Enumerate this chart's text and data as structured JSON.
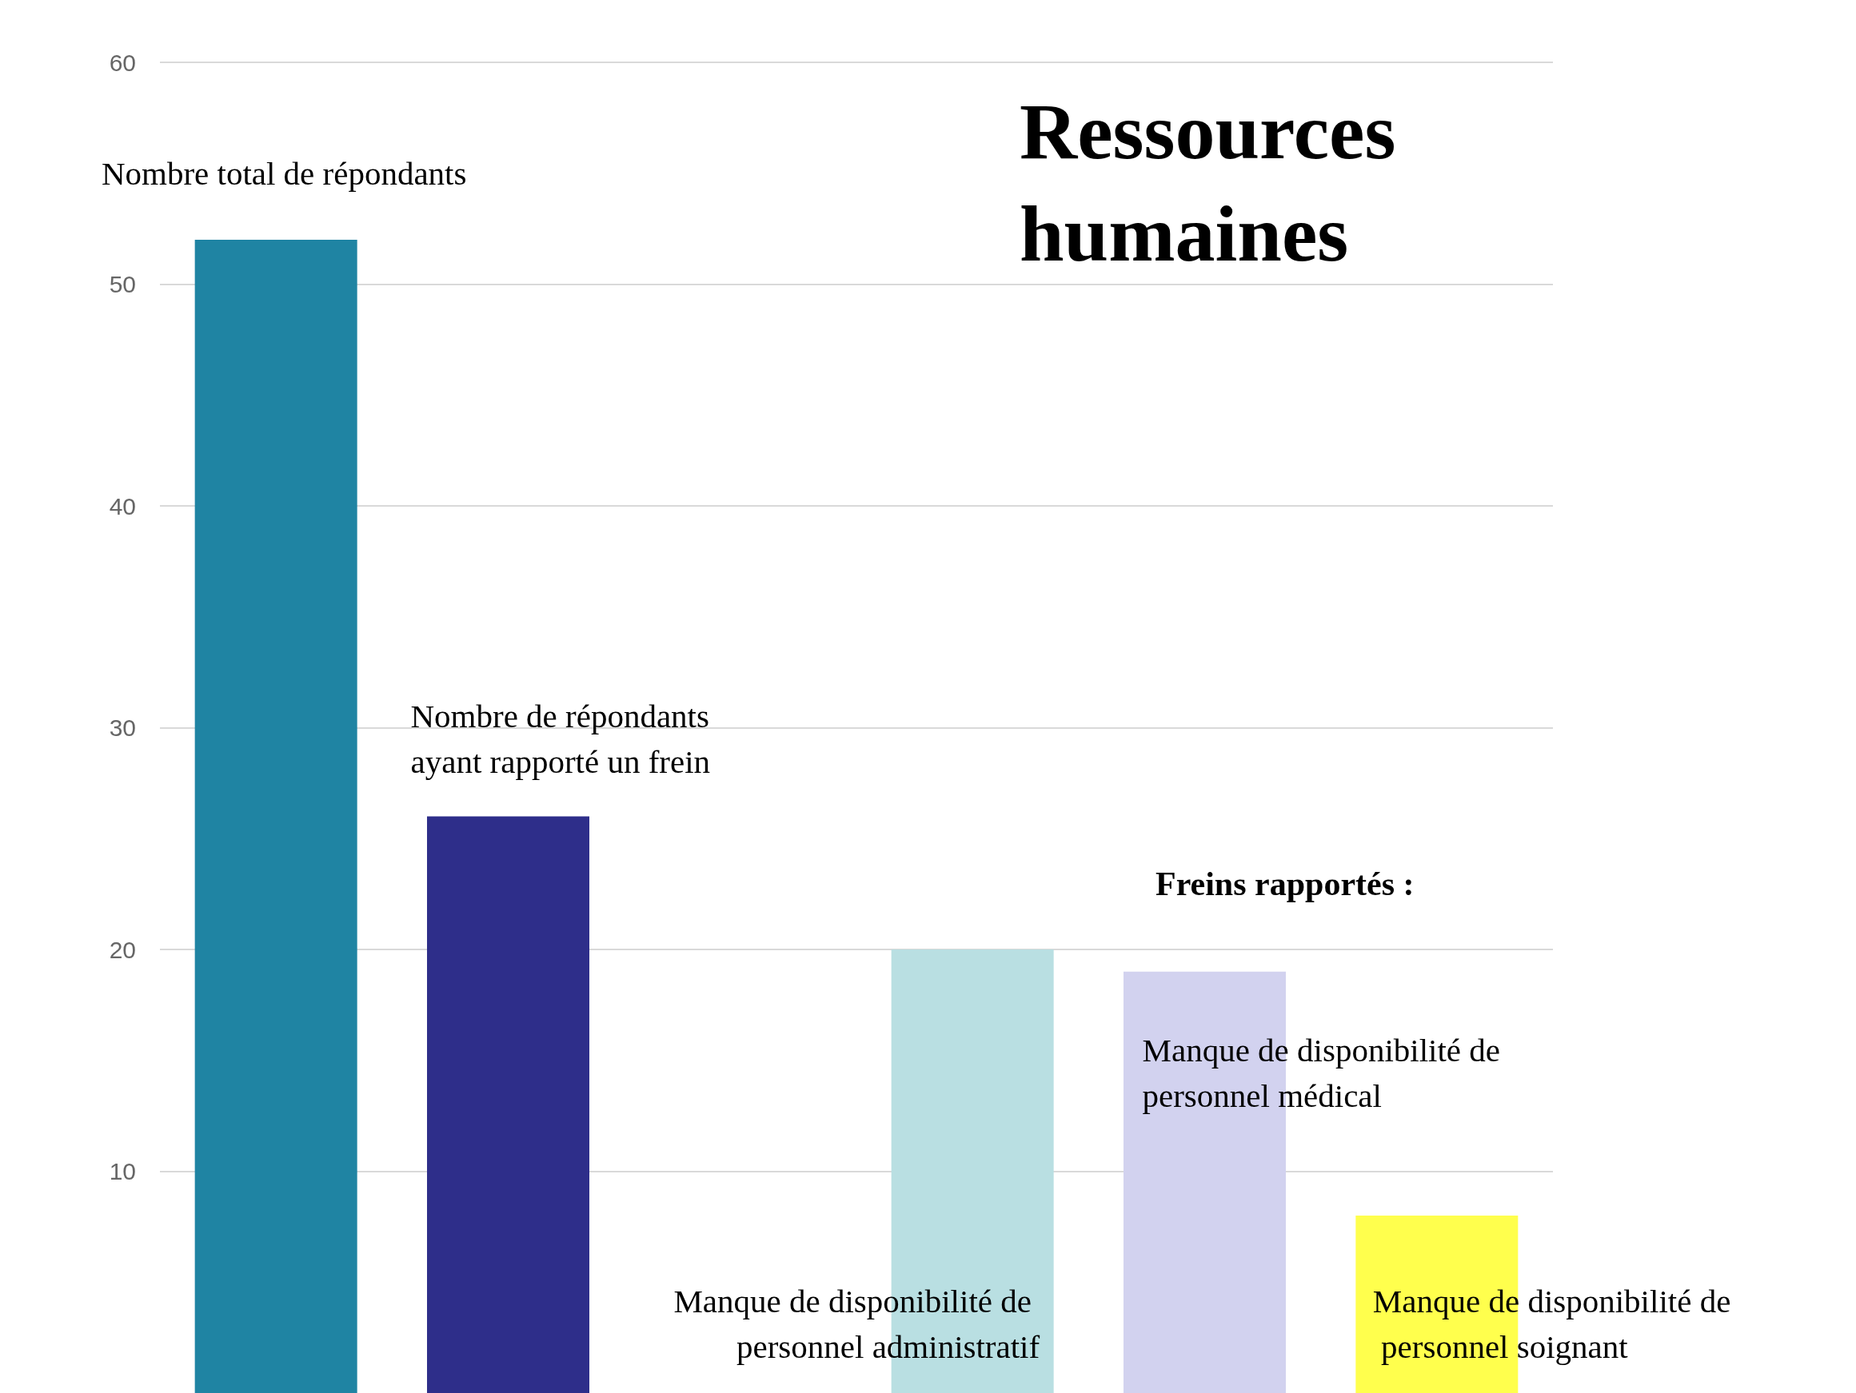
{
  "chart_data": {
    "type": "bar",
    "title": "Ressources humaines",
    "categories": [
      null,
      null,
      null,
      null,
      null,
      null
    ],
    "series": [
      {
        "name": "Nombre total de répondants",
        "color": "#1f84a3",
        "values": [
          52,
          null,
          null,
          null,
          null,
          null
        ]
      },
      {
        "name": "Nombre de répondants ayant rapporté un frein",
        "color": "#2e2e8a",
        "values": [
          null,
          26,
          null,
          null,
          null,
          null
        ]
      },
      {
        "name": "Manque de disponibilité de personnel administratif",
        "color": "#b9dfe2",
        "values": [
          null,
          null,
          null,
          20,
          null,
          null
        ]
      },
      {
        "name": "Manque de disponibilité de personnel médical",
        "color": "#d2d2ef",
        "values": [
          null,
          null,
          null,
          null,
          19,
          null
        ]
      },
      {
        "name": "Manque de disponibilité de personnel soignant",
        "color": "#ffff4d",
        "values": [
          null,
          null,
          null,
          null,
          null,
          8
        ]
      }
    ],
    "annotations": [
      "Freins rapportés :"
    ],
    "ylim": [
      0,
      60
    ],
    "yticks": [
      10,
      20,
      30,
      40,
      50,
      60
    ],
    "grid": "y",
    "tick_labels": "y"
  }
}
